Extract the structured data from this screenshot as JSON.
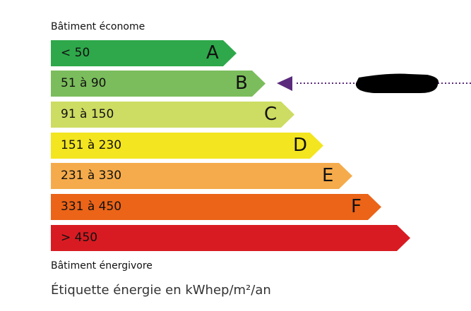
{
  "top_label": "Bâtiment économe",
  "bottom_label": "Bâtiment énergivore",
  "caption": "Étiquette énergie en kWhep/m²/an",
  "classes": [
    {
      "letter": "A",
      "range": "< 50",
      "color": "#2ea84a"
    },
    {
      "letter": "B",
      "range": "51 à 90",
      "color": "#7bbd5c"
    },
    {
      "letter": "C",
      "range": "91 à 150",
      "color": "#cddc62"
    },
    {
      "letter": "D",
      "range": "151 à 230",
      "color": "#f3e51f"
    },
    {
      "letter": "E",
      "range": "231 à 330",
      "color": "#f5ab4b"
    },
    {
      "letter": "F",
      "range": "331 à 450",
      "color": "#eb6418"
    },
    {
      "letter": "",
      "range": "> 450",
      "color": "#d81b22"
    }
  ],
  "indicator": {
    "class": "B",
    "color": "#5b2a7d",
    "value_redacted": true
  }
}
